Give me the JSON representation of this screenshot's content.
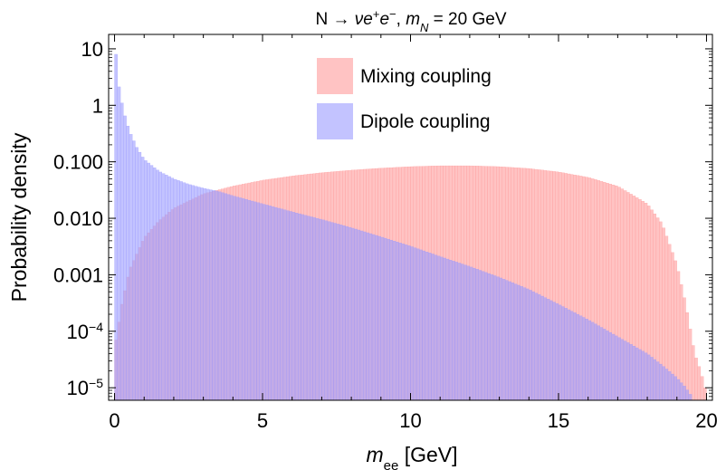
{
  "chart_data": {
    "type": "histogram",
    "title_parts": [
      "N → ",
      "ν",
      "e",
      "+",
      "e",
      "−",
      ", ",
      "m",
      "N",
      " = 20 GeV"
    ],
    "xlabel_parts": [
      "m",
      "ee",
      " [GeV]"
    ],
    "ylabel": "Probability density",
    "xlim": [
      -0.2,
      20.2
    ],
    "ylim": [
      6e-06,
      18
    ],
    "y_scale": "log",
    "x_ticks": [
      0,
      5,
      10,
      15,
      20
    ],
    "x_tick_labels": [
      "0",
      "5",
      "10",
      "15",
      "20"
    ],
    "y_ticks": [
      10,
      1,
      0.1,
      0.01,
      0.001,
      0.0001,
      1e-05
    ],
    "y_tick_labels": [
      {
        "base": "10",
        "exp": ""
      },
      {
        "base": "1",
        "exp": ""
      },
      {
        "base": "0.100",
        "exp": ""
      },
      {
        "base": "0.010",
        "exp": ""
      },
      {
        "base": "0.001",
        "exp": ""
      },
      {
        "base": "10",
        "exp": "−4"
      },
      {
        "base": "10",
        "exp": "−5"
      }
    ],
    "bin_width": 0.1,
    "series": [
      {
        "name": "Mixing coupling",
        "color": "#ff9b9b",
        "opacity": 0.6,
        "bin_centers": [
          0.05,
          0.25,
          0.5,
          1,
          1.5,
          2,
          3,
          4,
          5,
          6,
          7,
          8,
          9,
          10,
          11,
          12,
          13,
          14,
          15,
          16,
          17,
          18,
          18.5,
          19,
          19.3,
          19.6,
          19.8,
          19.95
        ],
        "values": [
          7e-05,
          0.0003,
          0.0012,
          0.0045,
          0.009,
          0.015,
          0.027,
          0.037,
          0.047,
          0.056,
          0.064,
          0.071,
          0.077,
          0.082,
          0.085,
          0.085,
          0.082,
          0.076,
          0.066,
          0.053,
          0.037,
          0.018,
          0.008,
          0.0015,
          0.0003,
          4e-05,
          2e-05,
          1e-05
        ]
      },
      {
        "name": "Dipole coupling",
        "color": "#9b9bff",
        "opacity": 0.6,
        "bin_centers": [
          0.05,
          0.1,
          0.2,
          0.3,
          0.5,
          0.75,
          1,
          1.5,
          2,
          2.5,
          3,
          3.5,
          4,
          5,
          6,
          7,
          8,
          9,
          10,
          11,
          12,
          13,
          14,
          15,
          16,
          17,
          18,
          18.5,
          19,
          19.3,
          19.5
        ],
        "values": [
          8,
          3,
          1.5,
          0.8,
          0.35,
          0.18,
          0.11,
          0.068,
          0.05,
          0.04,
          0.034,
          0.03,
          0.025,
          0.018,
          0.013,
          0.0095,
          0.0068,
          0.0047,
          0.0032,
          0.0021,
          0.0014,
          0.0009,
          0.00055,
          0.0003,
          0.00016,
          8e-05,
          4e-05,
          2.5e-05,
          1.5e-05,
          1e-05,
          7e-06
        ]
      }
    ],
    "legend_position": "top-center"
  }
}
